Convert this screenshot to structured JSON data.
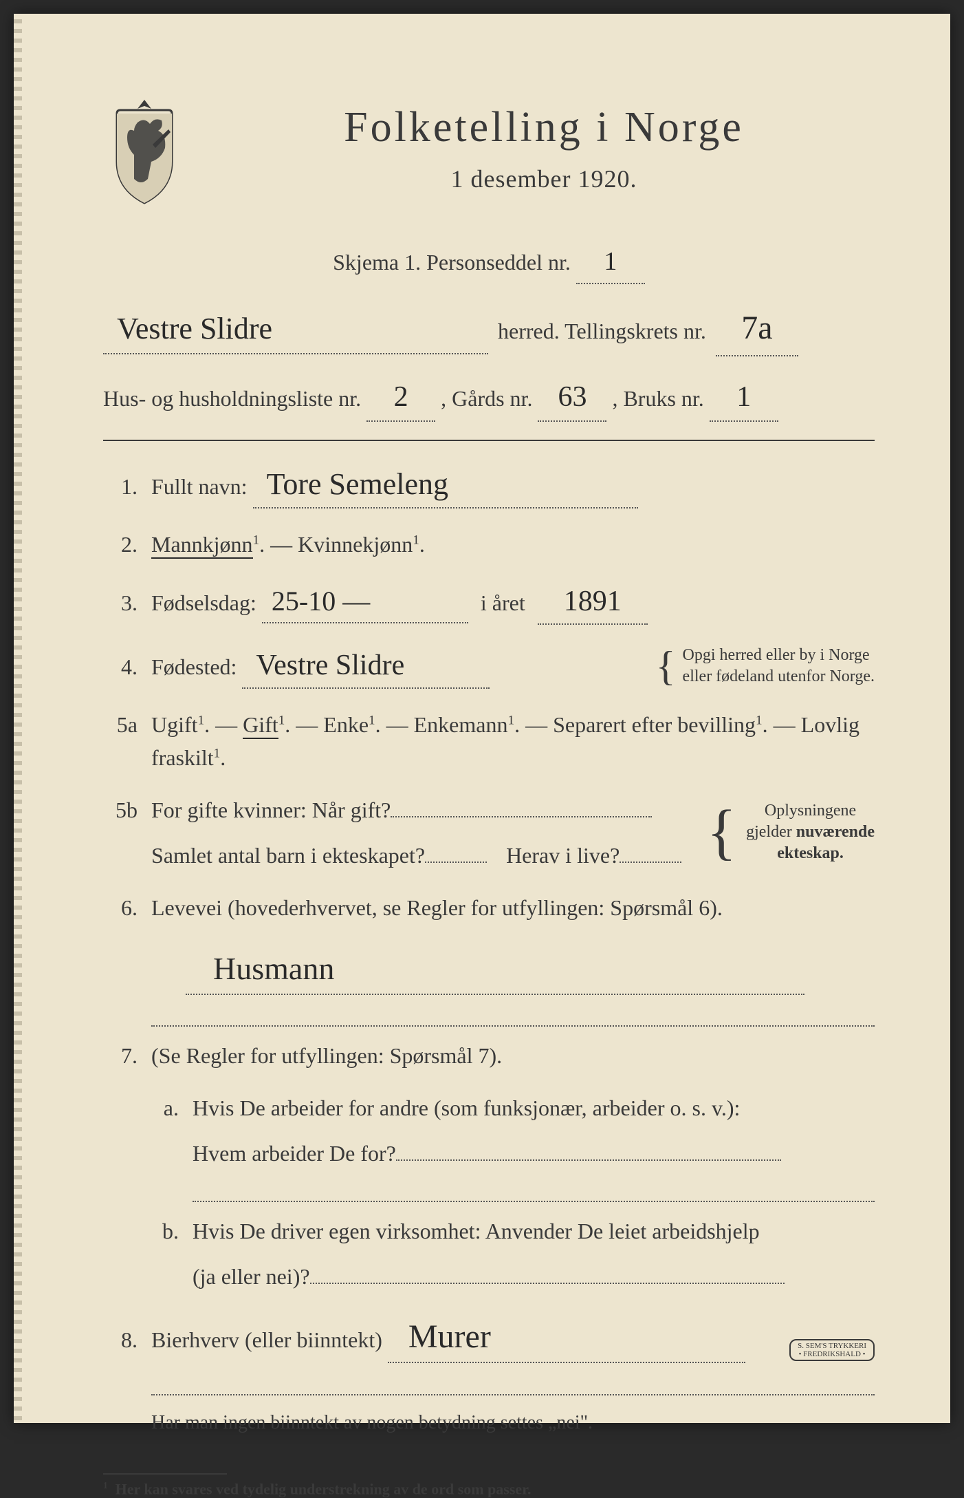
{
  "colors": {
    "paper": "#ede5cf",
    "ink": "#3a3a3a",
    "handwriting": "#2a2a2a"
  },
  "header": {
    "title": "Folketelling  i  Norge",
    "subtitle": "1 desember 1920."
  },
  "meta": {
    "skjema_label": "Skjema 1.   Personseddel nr.",
    "personseddel_nr": "1",
    "herred_name": "Vestre Slidre",
    "herred_label": "herred.   Tellingskrets nr.",
    "tellingskrets_nr": "7a",
    "hus_label_a": "Hus- og husholdningsliste nr.",
    "hus_nr": "2",
    "gards_label": ",  Gårds nr.",
    "gards_nr": "63",
    "bruks_label": ",   Bruks nr.",
    "bruks_nr": "1"
  },
  "q1": {
    "num": "1.",
    "label": "Fullt navn:",
    "value": "Tore Semeleng"
  },
  "q2": {
    "num": "2.",
    "mann": "Mannkjønn",
    "kvinne": "Kvinnekjønn",
    "sup": "1",
    "sep": ". — "
  },
  "q3": {
    "num": "3.",
    "label_a": "Fødselsdag:",
    "value_a": "25-10 —",
    "label_b": "i året",
    "value_b": "1891"
  },
  "q4": {
    "num": "4.",
    "label": "Fødested:",
    "value": "Vestre Slidre",
    "note_a": "Opgi herred eller by i Norge",
    "note_b": "eller fødeland utenfor Norge."
  },
  "q5a": {
    "num": "5a",
    "opts": [
      "Ugift",
      "Gift",
      "Enke",
      "Enkemann",
      "Separert efter bevilling",
      "Lovlig fraskilt"
    ],
    "selected_index": 1,
    "sup": "1"
  },
  "q5b": {
    "num": "5b",
    "line1_a": "For gifte kvinner:  Når gift?",
    "line2_a": "Samlet antal barn i ekteskapet?",
    "line2_b": "Herav i live?",
    "note_a": "Oplysningene",
    "note_b": "gjelder nuværende",
    "note_c": "ekteskap."
  },
  "q6": {
    "num": "6.",
    "label": "Levevei  (hovederhvervet, se Regler for utfyllingen:   Spørsmål 6).",
    "value": "Husmann"
  },
  "q7": {
    "num": "7.",
    "label": "(Se Regler for utfyllingen:   Spørsmål 7).",
    "a_num": "a.",
    "a_line1": "Hvis De arbeider for andre (som funksjonær, arbeider o. s. v.):",
    "a_line2": "Hvem arbeider De for?",
    "b_num": "b.",
    "b_line1": "Hvis De driver egen virksomhet:   Anvender De leiet arbeidshjelp",
    "b_line2": "(ja eller nei)?"
  },
  "q8": {
    "num": "8.",
    "label": "Bierhverv  (eller biinntekt)",
    "value": "Murer"
  },
  "tail": {
    "note": "Har man ingen biinntekt av nogen betydning settes „nei\".",
    "footnote_num": "1",
    "footnote": "Her kan svares ved tydelig understrekning av de ord som passer.",
    "stamp_a": "S. SEM'S TRYKKERI",
    "stamp_b": "• FREDRIKSHALD •"
  }
}
